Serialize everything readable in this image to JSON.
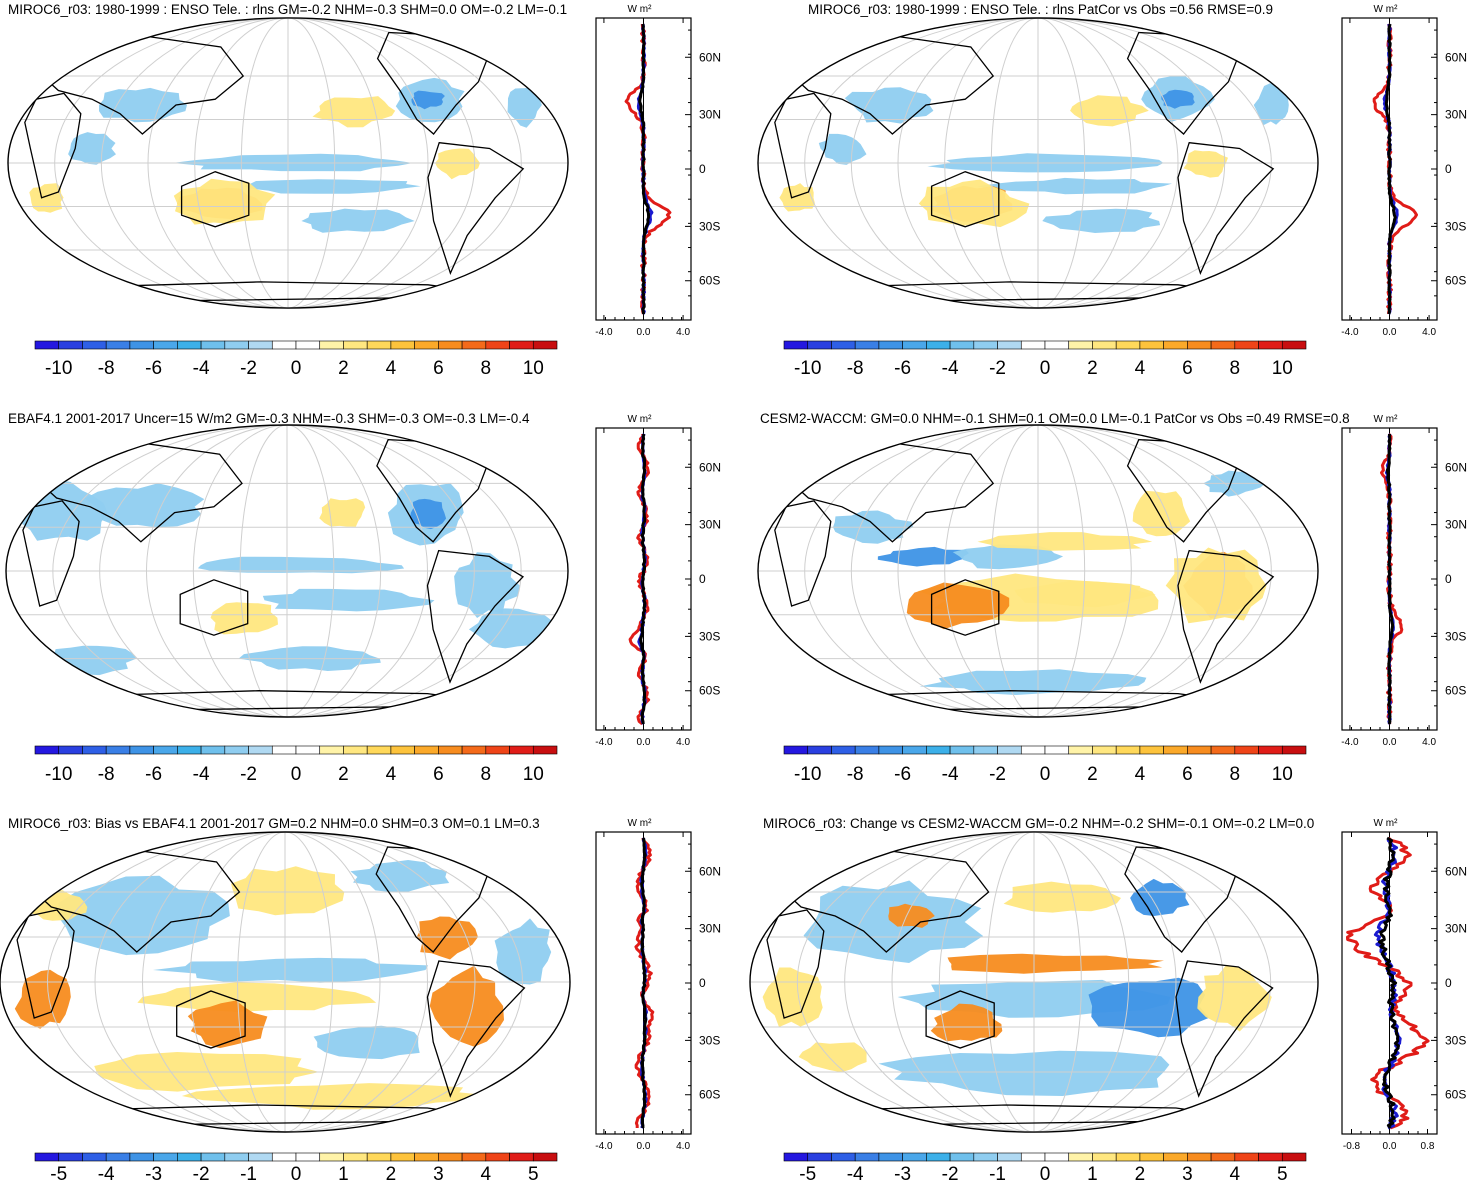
{
  "chart_data": [
    {
      "type": "heatmap",
      "title": "MIROC6_r03: 1980-1999 : ENSO Tele. : rlns GM=-0.2 NHM=-0.3 SHM=0.0 OM=-0.2 LM=-0.1",
      "colorbar_ticks": [
        "-10",
        "-8",
        "-6",
        "-4",
        "-2",
        "0",
        "2",
        "4",
        "6",
        "8",
        "10"
      ],
      "profile": {
        "units": "W m²",
        "lat_ticks": [
          "60N",
          "30N",
          "0",
          "30S",
          "60S"
        ],
        "x_ticks": [
          "-4.0",
          "0.0",
          "4.0"
        ],
        "xlim": [
          -4.8,
          4.8
        ]
      }
    },
    {
      "type": "heatmap",
      "title": "MIROC6_r03: 1980-1999 : ENSO Tele. : rlns PatCor vs Obs =0.56 RMSE=0.9",
      "colorbar_ticks": [
        "-10",
        "-8",
        "-6",
        "-4",
        "-2",
        "0",
        "2",
        "4",
        "6",
        "8",
        "10"
      ],
      "profile": {
        "units": "W m²",
        "lat_ticks": [
          "60N",
          "30N",
          "0",
          "30S",
          "60S"
        ],
        "x_ticks": [
          "-4.0",
          "0.0",
          "4.0"
        ],
        "xlim": [
          -4.8,
          4.8
        ]
      }
    },
    {
      "type": "heatmap",
      "title": "EBAF4.1 2001-2017 Uncer=15 W/m2 GM=-0.3 NHM=-0.3 SHM=-0.3 OM=-0.3 LM=-0.4",
      "colorbar_ticks": [
        "-10",
        "-8",
        "-6",
        "-4",
        "-2",
        "0",
        "2",
        "4",
        "6",
        "8",
        "10"
      ],
      "profile": {
        "units": "W m²",
        "lat_ticks": [
          "60N",
          "30N",
          "0",
          "30S",
          "60S"
        ],
        "x_ticks": [
          "-4.0",
          "0.0",
          "4.0"
        ],
        "xlim": [
          -4.8,
          4.8
        ]
      }
    },
    {
      "type": "heatmap",
      "title": "CESM2-WACCM: GM=0.0 NHM=-0.1 SHM=0.1 OM=0.0 LM=-0.1 PatCor vs Obs =0.49 RMSE=0.8",
      "colorbar_ticks": [
        "-10",
        "-8",
        "-6",
        "-4",
        "-2",
        "0",
        "2",
        "4",
        "6",
        "8",
        "10"
      ],
      "profile": {
        "units": "W m²",
        "lat_ticks": [
          "60N",
          "30N",
          "0",
          "30S",
          "60S"
        ],
        "x_ticks": [
          "-4.0",
          "0.0",
          "4.0"
        ],
        "xlim": [
          -4.8,
          4.8
        ]
      }
    },
    {
      "type": "heatmap",
      "title": "MIROC6_r03: Bias vs EBAF4.1 2001-2017 GM=0.2 NHM=0.0 SHM=0.3 OM=0.1 LM=0.3",
      "colorbar_ticks": [
        "-5",
        "-4",
        "-3",
        "-2",
        "-1",
        "0",
        "1",
        "2",
        "3",
        "4",
        "5"
      ],
      "profile": {
        "units": "W m²",
        "lat_ticks": [
          "60N",
          "30N",
          "0",
          "30S",
          "60S"
        ],
        "x_ticks": [
          "-4.0",
          "0.0",
          "4.0"
        ],
        "xlim": [
          -4.8,
          4.8
        ]
      }
    },
    {
      "type": "heatmap",
      "title": "MIROC6_r03: Change vs CESM2-WACCM GM=-0.2 NHM=-0.2 SHM=-0.1 OM=-0.2 LM=0.0",
      "colorbar_ticks": [
        "-5",
        "-4",
        "-3",
        "-2",
        "-1",
        "0",
        "1",
        "2",
        "3",
        "4",
        "5"
      ],
      "profile": {
        "units": "W m²",
        "lat_ticks": [
          "60N",
          "30N",
          "0",
          "30S",
          "60S"
        ],
        "x_ticks": [
          "-0.8",
          "0.0",
          "0.8"
        ],
        "xlim": [
          -1.0,
          1.0
        ]
      }
    }
  ],
  "colors": {
    "colorbar": [
      "#2417e0",
      "#2a3fe0",
      "#2e5fe6",
      "#3a7fe6",
      "#3e93e6",
      "#4aa7ea",
      "#3cb0e9",
      "#6fc0ec",
      "#8fcdf0",
      "#b0d9f2",
      "#ffffff",
      "#ffffff",
      "#fff3a8",
      "#ffe780",
      "#ffd85a",
      "#fdc33c",
      "#fba92a",
      "#f78c1f",
      "#f46a1a",
      "#ef4418",
      "#e01c18",
      "#c80e10"
    ],
    "map_blue": "#8fcdf0",
    "map_blue_dark": "#3e93e6",
    "map_yellow": "#ffe780",
    "map_orange": "#f78c1f",
    "profile_red": "#e01c18",
    "profile_blue": "#1a1ad0",
    "profile_black": "#000000"
  }
}
